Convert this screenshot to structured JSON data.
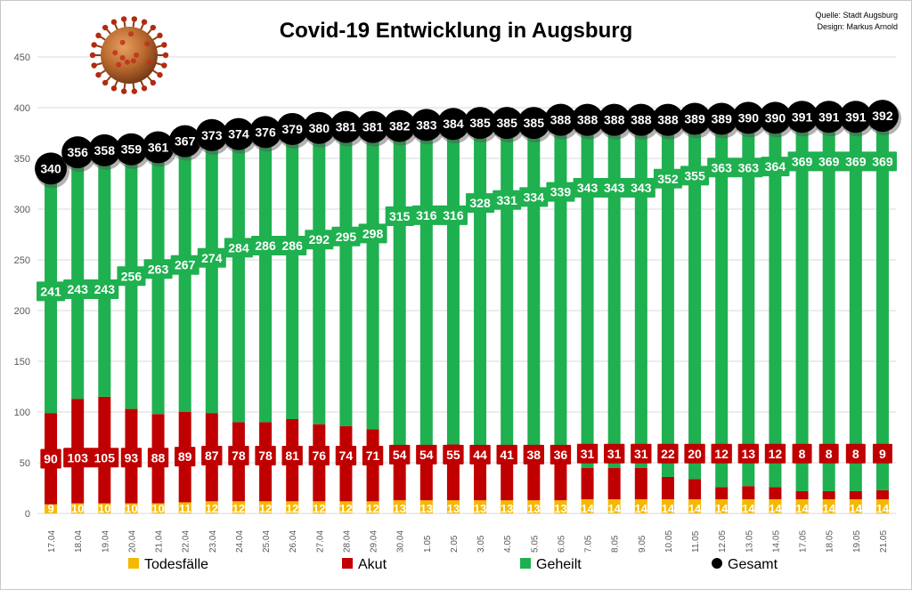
{
  "chart_data": {
    "type": "bar",
    "title": "Covid-19 Entwicklung in Augsburg",
    "source_lines": [
      "Quelle: Stadt Augsburg",
      "Design: Markus Arnold"
    ],
    "ylim": [
      0,
      450
    ],
    "yticks": [
      0,
      50,
      100,
      150,
      200,
      250,
      300,
      350,
      400,
      450
    ],
    "grid": true,
    "legend_position": "bottom",
    "categories": [
      "17.04",
      "18.04",
      "19.04",
      "20.04",
      "21.04",
      "22.04",
      "23.04",
      "24.04",
      "25.04",
      "26.04",
      "27.04",
      "28.04",
      "29.04",
      "30.04",
      "1.05",
      "2.05",
      "3.05",
      "4.05",
      "5.05",
      "6.05",
      "7.05",
      "8.05",
      "9.05",
      "10.05",
      "11.05",
      "12.05",
      "13.05",
      "14.05",
      "17.05",
      "18.05",
      "19.05",
      "21.05"
    ],
    "series": [
      {
        "name": "Todesfälle",
        "color": "#f5b800",
        "values": [
          9,
          10,
          10,
          10,
          10,
          11,
          12,
          12,
          12,
          12,
          12,
          12,
          12,
          13,
          13,
          13,
          13,
          13,
          13,
          13,
          14,
          14,
          14,
          14,
          14,
          14,
          14,
          14,
          14,
          14,
          14,
          14
        ]
      },
      {
        "name": "Akut",
        "color": "#c00000",
        "values": [
          90,
          103,
          105,
          93,
          88,
          89,
          87,
          78,
          78,
          81,
          76,
          74,
          71,
          54,
          54,
          55,
          44,
          41,
          38,
          36,
          31,
          31,
          31,
          22,
          20,
          12,
          13,
          12,
          8,
          8,
          8,
          9
        ]
      },
      {
        "name": "Geheilt",
        "color": "#1fb050",
        "values": [
          241,
          243,
          243,
          256,
          263,
          267,
          274,
          284,
          286,
          286,
          292,
          295,
          298,
          315,
          316,
          316,
          328,
          331,
          334,
          339,
          343,
          343,
          343,
          352,
          355,
          363,
          363,
          364,
          369,
          369,
          369,
          369
        ]
      },
      {
        "name": "Gesamt",
        "color": "#000000",
        "values": [
          340,
          356,
          358,
          359,
          361,
          367,
          373,
          374,
          376,
          379,
          380,
          381,
          381,
          382,
          383,
          384,
          385,
          385,
          385,
          388,
          388,
          388,
          388,
          388,
          389,
          389,
          390,
          390,
          391,
          391,
          391,
          392
        ]
      }
    ]
  }
}
